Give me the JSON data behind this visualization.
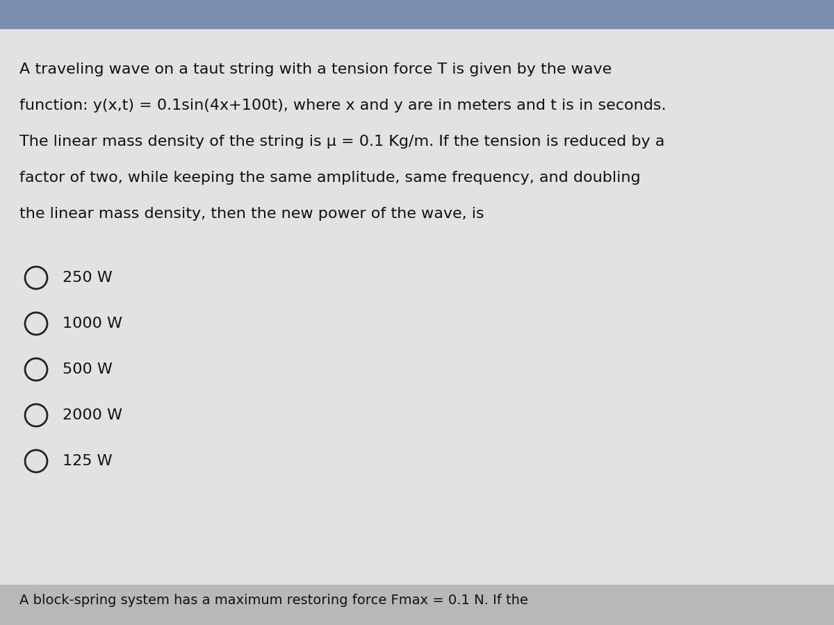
{
  "background_color": "#c8c8c8",
  "top_bar_color": "#7a8cb0",
  "content_bg_color": "#e2e2e2",
  "footer_bg_color": "#b8b8b8",
  "question_lines": [
    "A traveling wave on a taut string with a tension force T is given by the wave",
    "function: y(x,t) = 0.1sin(4x+100t), where x and y are in meters and t is in seconds.",
    "The linear mass density of the string is μ = 0.1 Kg/m. If the tension is reduced by a",
    "factor of two, while keeping the same amplitude, same frequency, and doubling",
    "the linear mass density, then the new power of the wave, is"
  ],
  "options": [
    "250 W",
    "1000 W",
    "500 W",
    "2000 W",
    "125 W"
  ],
  "footer_text": "A block-spring system has a maximum restoring force Fmax = 0.1 N. If the",
  "text_color": "#111111",
  "circle_color": "#222222",
  "font_size_question": 16,
  "font_size_options": 16,
  "font_size_footer": 14
}
